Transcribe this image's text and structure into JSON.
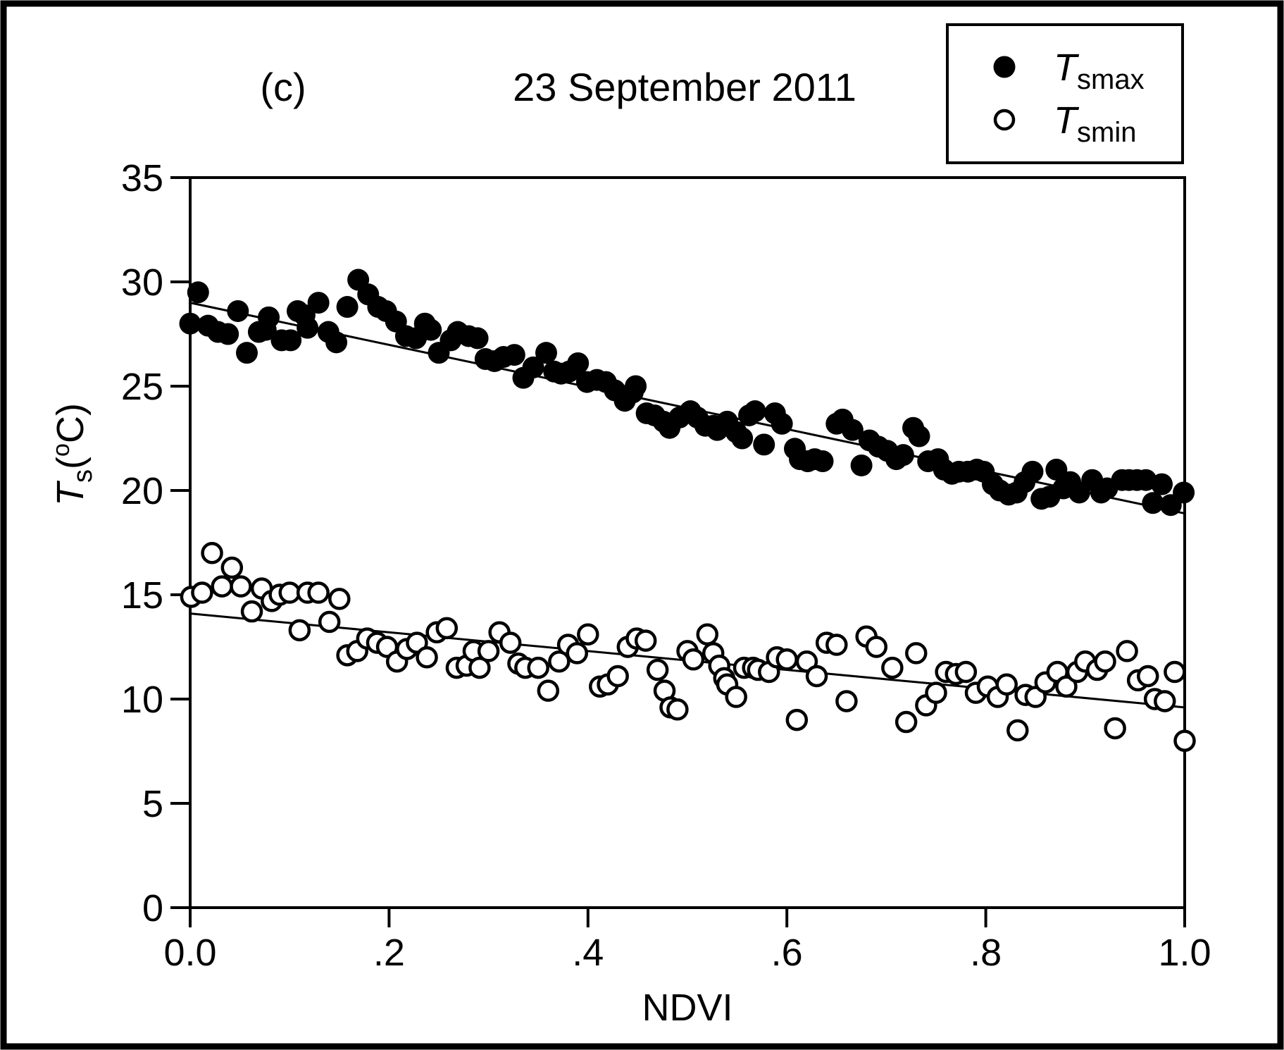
{
  "figure": {
    "panel_label": "(c)",
    "title": "23 September 2011",
    "colors": {
      "foreground": "#000000",
      "background": "#ffffff"
    },
    "legend": {
      "items": [
        {
          "marker": "filled-circle",
          "var": "T",
          "sub": "smax"
        },
        {
          "marker": "open-circle",
          "var": "T",
          "sub": "smin"
        }
      ]
    },
    "y_axis_label_parts": {
      "var": "T",
      "sub": "s",
      "prefix": "(",
      "degree": "o",
      "suffix": "C)"
    },
    "x_axis_label": "NDVI"
  },
  "chart_data": {
    "type": "scatter",
    "title": "23 September 2011",
    "panel": "(c)",
    "xlabel": "NDVI",
    "ylabel": "Ts(oC)",
    "xlim": [
      0,
      1
    ],
    "ylim": [
      0,
      35
    ],
    "x_ticks": {
      "values": [
        0,
        0.2,
        0.4,
        0.6,
        0.8,
        1.0
      ],
      "labels": [
        "0.0",
        ".2",
        ".4",
        ".6",
        ".8",
        "1.0"
      ]
    },
    "y_ticks": {
      "values": [
        0,
        5,
        10,
        15,
        20,
        25,
        30,
        35
      ],
      "labels": [
        "0",
        "5",
        "10",
        "15",
        "20",
        "25",
        "30",
        "35"
      ]
    },
    "grid": false,
    "legend_position": "top-right-outside",
    "series": [
      {
        "name": "Tsmax",
        "marker": "filled-circle",
        "points": [
          [
            0.0,
            28.0
          ],
          [
            0.008,
            29.5
          ],
          [
            0.018,
            27.9
          ],
          [
            0.028,
            27.6
          ],
          [
            0.038,
            27.5
          ],
          [
            0.048,
            28.6
          ],
          [
            0.057,
            26.6
          ],
          [
            0.069,
            27.6
          ],
          [
            0.076,
            27.7
          ],
          [
            0.079,
            28.3
          ],
          [
            0.092,
            27.2
          ],
          [
            0.101,
            27.2
          ],
          [
            0.108,
            28.6
          ],
          [
            0.115,
            28.4
          ],
          [
            0.118,
            27.8
          ],
          [
            0.129,
            29.0
          ],
          [
            0.139,
            27.6
          ],
          [
            0.147,
            27.1
          ],
          [
            0.158,
            28.8
          ],
          [
            0.169,
            30.1
          ],
          [
            0.179,
            29.4
          ],
          [
            0.189,
            28.8
          ],
          [
            0.197,
            28.6
          ],
          [
            0.207,
            28.1
          ],
          [
            0.217,
            27.4
          ],
          [
            0.227,
            27.3
          ],
          [
            0.236,
            28.0
          ],
          [
            0.242,
            27.7
          ],
          [
            0.25,
            26.6
          ],
          [
            0.262,
            27.2
          ],
          [
            0.269,
            27.6
          ],
          [
            0.28,
            27.4
          ],
          [
            0.289,
            27.3
          ],
          [
            0.297,
            26.3
          ],
          [
            0.306,
            26.2
          ],
          [
            0.315,
            26.4
          ],
          [
            0.326,
            26.5
          ],
          [
            0.335,
            25.4
          ],
          [
            0.345,
            25.9
          ],
          [
            0.358,
            26.6
          ],
          [
            0.366,
            25.7
          ],
          [
            0.373,
            25.6
          ],
          [
            0.381,
            25.7
          ],
          [
            0.39,
            26.1
          ],
          [
            0.399,
            25.2
          ],
          [
            0.409,
            25.3
          ],
          [
            0.418,
            25.2
          ],
          [
            0.427,
            24.8
          ],
          [
            0.437,
            24.3
          ],
          [
            0.445,
            24.7
          ],
          [
            0.448,
            25.0
          ],
          [
            0.459,
            23.7
          ],
          [
            0.467,
            23.6
          ],
          [
            0.476,
            23.3
          ],
          [
            0.482,
            23.0
          ],
          [
            0.492,
            23.5
          ],
          [
            0.503,
            23.8
          ],
          [
            0.51,
            23.5
          ],
          [
            0.518,
            23.1
          ],
          [
            0.526,
            23.1
          ],
          [
            0.53,
            22.9
          ],
          [
            0.54,
            23.3
          ],
          [
            0.549,
            22.8
          ],
          [
            0.555,
            22.5
          ],
          [
            0.562,
            23.6
          ],
          [
            0.568,
            23.8
          ],
          [
            0.577,
            22.2
          ],
          [
            0.588,
            23.7
          ],
          [
            0.595,
            23.2
          ],
          [
            0.608,
            22.0
          ],
          [
            0.613,
            21.5
          ],
          [
            0.621,
            21.4
          ],
          [
            0.628,
            21.5
          ],
          [
            0.636,
            21.4
          ],
          [
            0.65,
            23.2
          ],
          [
            0.656,
            23.4
          ],
          [
            0.666,
            22.9
          ],
          [
            0.675,
            21.2
          ],
          [
            0.683,
            22.4
          ],
          [
            0.692,
            22.1
          ],
          [
            0.701,
            21.9
          ],
          [
            0.71,
            21.5
          ],
          [
            0.717,
            21.7
          ],
          [
            0.727,
            23.0
          ],
          [
            0.733,
            22.6
          ],
          [
            0.742,
            21.4
          ],
          [
            0.752,
            21.5
          ],
          [
            0.758,
            21.0
          ],
          [
            0.766,
            20.8
          ],
          [
            0.773,
            20.9
          ],
          [
            0.782,
            20.9
          ],
          [
            0.791,
            21.0
          ],
          [
            0.798,
            20.9
          ],
          [
            0.807,
            20.3
          ],
          [
            0.814,
            20.0
          ],
          [
            0.823,
            19.8
          ],
          [
            0.831,
            19.9
          ],
          [
            0.839,
            20.4
          ],
          [
            0.847,
            20.9
          ],
          [
            0.856,
            19.6
          ],
          [
            0.864,
            19.7
          ],
          [
            0.871,
            21.0
          ],
          [
            0.878,
            20.1
          ],
          [
            0.885,
            20.4
          ],
          [
            0.894,
            19.9
          ],
          [
            0.907,
            20.5
          ],
          [
            0.916,
            19.9
          ],
          [
            0.922,
            20.1
          ],
          [
            0.937,
            20.5
          ],
          [
            0.944,
            20.5
          ],
          [
            0.952,
            20.5
          ],
          [
            0.961,
            20.5
          ],
          [
            0.968,
            19.4
          ],
          [
            0.977,
            20.3
          ],
          [
            0.986,
            19.3
          ],
          [
            0.999,
            19.9
          ]
        ],
        "trend_line": {
          "from": [
            0,
            29.0
          ],
          "to": [
            1.0,
            18.9
          ]
        }
      },
      {
        "name": "Tsmin",
        "marker": "open-circle",
        "points": [
          [
            0.001,
            14.9
          ],
          [
            0.012,
            15.1
          ],
          [
            0.022,
            17.0
          ],
          [
            0.032,
            15.4
          ],
          [
            0.042,
            16.3
          ],
          [
            0.051,
            15.4
          ],
          [
            0.062,
            14.2
          ],
          [
            0.072,
            15.3
          ],
          [
            0.082,
            14.7
          ],
          [
            0.09,
            15.0
          ],
          [
            0.1,
            15.1
          ],
          [
            0.11,
            13.3
          ],
          [
            0.118,
            15.1
          ],
          [
            0.129,
            15.1
          ],
          [
            0.14,
            13.7
          ],
          [
            0.15,
            14.8
          ],
          [
            0.158,
            12.1
          ],
          [
            0.168,
            12.3
          ],
          [
            0.178,
            12.9
          ],
          [
            0.188,
            12.7
          ],
          [
            0.198,
            12.5
          ],
          [
            0.208,
            11.8
          ],
          [
            0.218,
            12.4
          ],
          [
            0.228,
            12.7
          ],
          [
            0.238,
            12.0
          ],
          [
            0.248,
            13.2
          ],
          [
            0.258,
            13.4
          ],
          [
            0.268,
            11.5
          ],
          [
            0.278,
            11.6
          ],
          [
            0.285,
            12.3
          ],
          [
            0.291,
            11.5
          ],
          [
            0.3,
            12.3
          ],
          [
            0.311,
            13.2
          ],
          [
            0.322,
            12.7
          ],
          [
            0.33,
            11.7
          ],
          [
            0.337,
            11.5
          ],
          [
            0.35,
            11.5
          ],
          [
            0.36,
            10.4
          ],
          [
            0.371,
            11.8
          ],
          [
            0.38,
            12.6
          ],
          [
            0.389,
            12.2
          ],
          [
            0.4,
            13.1
          ],
          [
            0.412,
            10.6
          ],
          [
            0.42,
            10.7
          ],
          [
            0.43,
            11.1
          ],
          [
            0.44,
            12.5
          ],
          [
            0.449,
            12.9
          ],
          [
            0.458,
            12.8
          ],
          [
            0.47,
            11.4
          ],
          [
            0.477,
            10.4
          ],
          [
            0.483,
            9.6
          ],
          [
            0.49,
            9.5
          ],
          [
            0.5,
            12.3
          ],
          [
            0.506,
            11.9
          ],
          [
            0.52,
            13.1
          ],
          [
            0.526,
            12.2
          ],
          [
            0.532,
            11.6
          ],
          [
            0.537,
            11.0
          ],
          [
            0.54,
            10.7
          ],
          [
            0.549,
            10.1
          ],
          [
            0.557,
            11.5
          ],
          [
            0.566,
            11.5
          ],
          [
            0.571,
            11.4
          ],
          [
            0.582,
            11.3
          ],
          [
            0.59,
            12.0
          ],
          [
            0.6,
            11.9
          ],
          [
            0.61,
            9.0
          ],
          [
            0.62,
            11.8
          ],
          [
            0.63,
            11.1
          ],
          [
            0.64,
            12.7
          ],
          [
            0.65,
            12.6
          ],
          [
            0.66,
            9.9
          ],
          [
            0.68,
            13.0
          ],
          [
            0.69,
            12.5
          ],
          [
            0.706,
            11.5
          ],
          [
            0.72,
            8.9
          ],
          [
            0.73,
            12.2
          ],
          [
            0.74,
            9.7
          ],
          [
            0.75,
            10.3
          ],
          [
            0.76,
            11.3
          ],
          [
            0.77,
            11.2
          ],
          [
            0.78,
            11.3
          ],
          [
            0.79,
            10.3
          ],
          [
            0.802,
            10.6
          ],
          [
            0.812,
            10.1
          ],
          [
            0.821,
            10.7
          ],
          [
            0.832,
            8.5
          ],
          [
            0.84,
            10.2
          ],
          [
            0.85,
            10.1
          ],
          [
            0.86,
            10.8
          ],
          [
            0.872,
            11.3
          ],
          [
            0.881,
            10.6
          ],
          [
            0.892,
            11.3
          ],
          [
            0.9,
            11.8
          ],
          [
            0.912,
            11.4
          ],
          [
            0.92,
            11.8
          ],
          [
            0.93,
            8.6
          ],
          [
            0.942,
            12.3
          ],
          [
            0.953,
            10.9
          ],
          [
            0.963,
            11.1
          ],
          [
            0.97,
            10.0
          ],
          [
            0.98,
            9.9
          ],
          [
            0.99,
            11.3
          ],
          [
            1.0,
            8.0
          ]
        ],
        "trend_line": {
          "from": [
            0,
            14.1
          ],
          "to": [
            1.0,
            9.6
          ]
        }
      }
    ]
  }
}
